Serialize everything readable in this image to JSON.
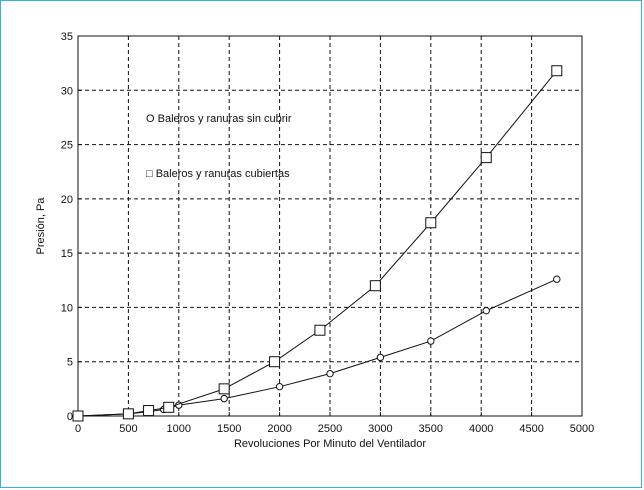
{
  "chart_data": {
    "type": "line",
    "xlabel": "Revoluciones Por Minuto del Ventilador",
    "ylabel": "Presión, Pa",
    "xlim": [
      0,
      5000
    ],
    "ylim": [
      0,
      35
    ],
    "x_ticks": [
      0,
      500,
      1000,
      1500,
      2000,
      2500,
      3000,
      3500,
      4000,
      4500,
      5000
    ],
    "y_ticks": [
      0,
      5,
      10,
      15,
      20,
      25,
      30,
      35
    ],
    "grid": true,
    "series": [
      {
        "name": "Baleros y ranuras sin cubrir",
        "marker": "circle",
        "legend_symbol": "O",
        "x": [
          0,
          500,
          700,
          850,
          1000,
          1450,
          2000,
          2500,
          3000,
          3500,
          4050,
          4750
        ],
        "y": [
          0,
          0.2,
          0.4,
          0.6,
          1.0,
          1.6,
          2.7,
          3.9,
          5.4,
          6.9,
          9.7,
          12.6
        ]
      },
      {
        "name": "Baleros y ranuras cubiertas",
        "marker": "square",
        "legend_symbol": "□",
        "x": [
          0,
          500,
          700,
          900,
          1450,
          1950,
          2400,
          2950,
          3500,
          4050,
          4750
        ],
        "y": [
          0,
          0.2,
          0.5,
          0.8,
          2.5,
          5.0,
          7.9,
          12.0,
          17.8,
          23.8,
          31.8
        ]
      }
    ]
  }
}
